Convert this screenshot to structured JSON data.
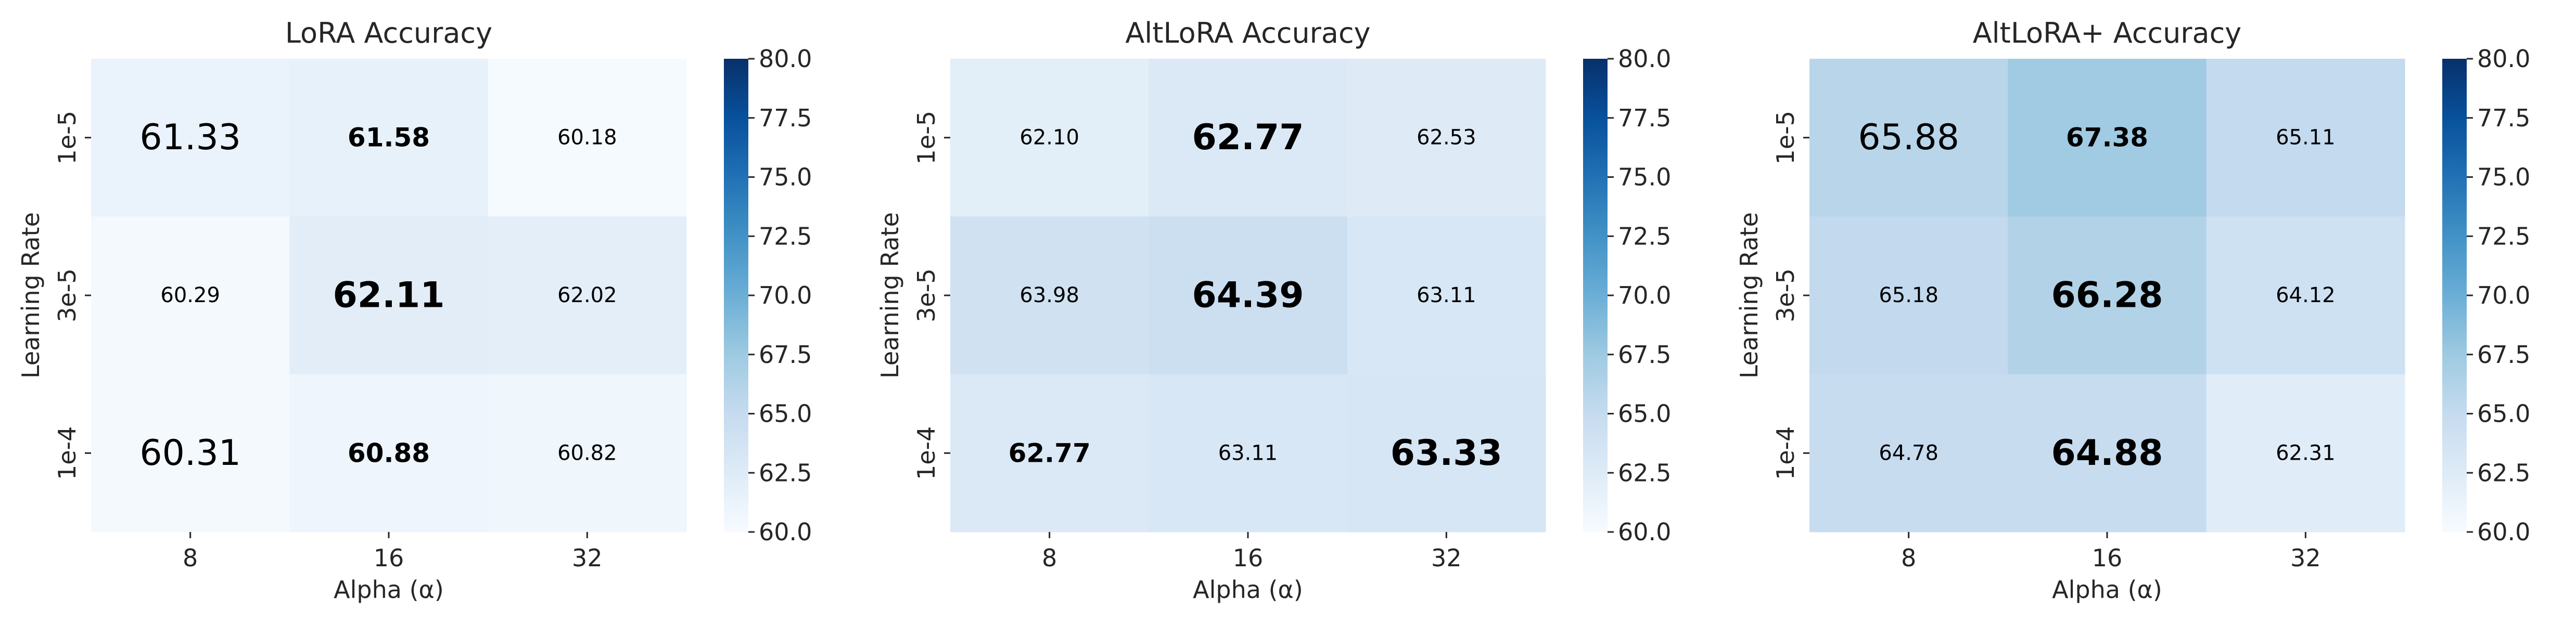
{
  "chart_data": [
    {
      "type": "heatmap",
      "title": "LoRA Accuracy",
      "xlabel": "Alpha (α)",
      "ylabel": "Learning Rate",
      "x": [
        "8",
        "16",
        "32"
      ],
      "y": [
        "1e-5",
        "3e-5",
        "1e-4"
      ],
      "values": [
        [
          61.33,
          61.58,
          60.18
        ],
        [
          60.29,
          62.11,
          62.02
        ],
        [
          60.31,
          60.88,
          60.82
        ]
      ],
      "labels": [
        [
          "61.33",
          "61.58",
          "60.18"
        ],
        [
          "60.29",
          "62.11",
          "62.02"
        ],
        [
          "60.31",
          "60.88",
          "60.82"
        ]
      ],
      "highlight": [
        [
          false,
          true,
          false
        ],
        [
          false,
          true,
          false
        ],
        [
          false,
          true,
          false
        ]
      ],
      "best": [
        0,
        1,
        0
      ],
      "colorbar": {
        "range": [
          60,
          80
        ],
        "ticks": [
          "60.0",
          "62.5",
          "65.0",
          "67.5",
          "70.0",
          "72.5",
          "75.0",
          "77.5",
          "80.0"
        ],
        "colormap": "Blues"
      },
      "grid": false
    },
    {
      "type": "heatmap",
      "title": "AltLoRA Accuracy",
      "xlabel": "Alpha (α)",
      "ylabel": "Learning Rate",
      "x": [
        "8",
        "16",
        "32"
      ],
      "y": [
        "1e-5",
        "3e-5",
        "1e-4"
      ],
      "values": [
        [
          62.1,
          62.77,
          62.53
        ],
        [
          63.98,
          64.39,
          63.11
        ],
        [
          62.77,
          63.11,
          63.33
        ]
      ],
      "labels": [
        [
          "62.10",
          "62.77",
          "62.53"
        ],
        [
          "63.98",
          "64.39",
          "63.11"
        ],
        [
          "62.77",
          "63.11",
          "63.33"
        ]
      ],
      "highlight": [
        [
          false,
          true,
          false
        ],
        [
          false,
          true,
          false
        ],
        [
          true,
          false,
          true
        ]
      ],
      "best": [
        1,
        1,
        2
      ],
      "colorbar": {
        "range": [
          60,
          80
        ],
        "ticks": [
          "60.0",
          "62.5",
          "65.0",
          "67.5",
          "70.0",
          "72.5",
          "75.0",
          "77.5",
          "80.0"
        ],
        "colormap": "Blues"
      },
      "grid": false
    },
    {
      "type": "heatmap",
      "title": "AltLoRA+ Accuracy",
      "xlabel": "Alpha (α)",
      "ylabel": "Learning Rate",
      "x": [
        "8",
        "16",
        "32"
      ],
      "y": [
        "1e-5",
        "3e-5",
        "1e-4"
      ],
      "values": [
        [
          65.88,
          67.38,
          65.11
        ],
        [
          65.18,
          66.28,
          64.12
        ],
        [
          64.78,
          64.88,
          62.31
        ]
      ],
      "labels": [
        [
          "65.88",
          "67.38",
          "65.11"
        ],
        [
          "65.18",
          "66.28",
          "64.12"
        ],
        [
          "64.78",
          "64.88",
          "62.31"
        ]
      ],
      "highlight": [
        [
          false,
          true,
          false
        ],
        [
          false,
          true,
          false
        ],
        [
          false,
          true,
          false
        ]
      ],
      "best": [
        0,
        1,
        1
      ],
      "colorbar": {
        "range": [
          60,
          80
        ],
        "ticks": [
          "60.0",
          "62.5",
          "65.0",
          "67.5",
          "70.0",
          "72.5",
          "75.0",
          "77.5",
          "80.0"
        ],
        "colormap": "Blues"
      },
      "grid": false
    }
  ]
}
